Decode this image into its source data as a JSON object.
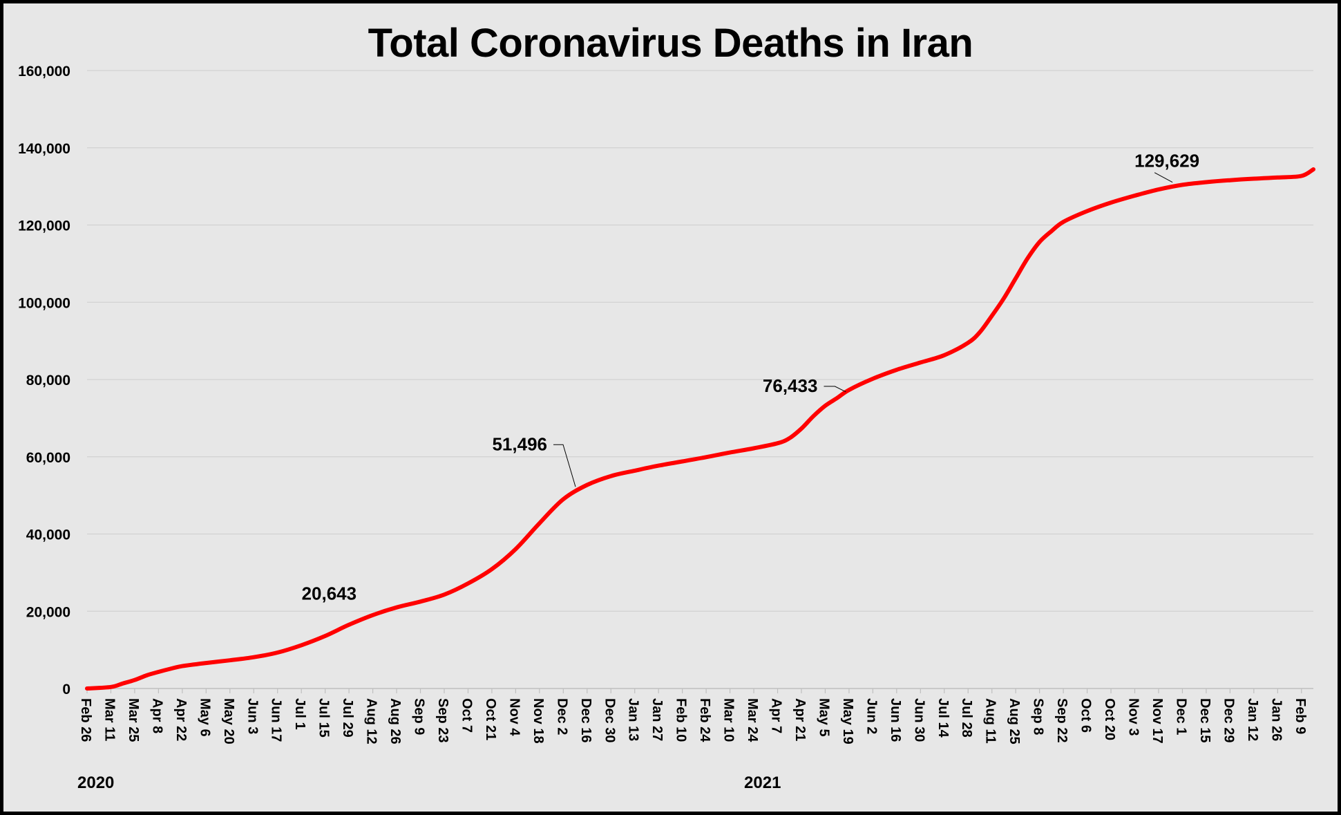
{
  "chart_data": {
    "type": "line",
    "title": "Total Coronavirus Deaths in Iran",
    "xlabel": "",
    "ylabel": "",
    "ylim": [
      0,
      160000
    ],
    "yticks": [
      0,
      20000,
      40000,
      60000,
      80000,
      100000,
      120000,
      140000,
      160000
    ],
    "ytick_labels": [
      "0",
      "20,000",
      "40,000",
      "60,000",
      "80,000",
      "100,000",
      "120,000",
      "140,000",
      "160,000"
    ],
    "xlim": [
      "2020-02-26",
      "2022-02-16"
    ],
    "xticks": [
      {
        "date": "2020-02-26",
        "label": "Feb 26"
      },
      {
        "date": "2020-03-11",
        "label": "Mar 11"
      },
      {
        "date": "2020-03-25",
        "label": "Mar 25"
      },
      {
        "date": "2020-04-08",
        "label": "Apr 8"
      },
      {
        "date": "2020-04-22",
        "label": "Apr 22"
      },
      {
        "date": "2020-05-06",
        "label": "May 6"
      },
      {
        "date": "2020-05-20",
        "label": "May 20"
      },
      {
        "date": "2020-06-03",
        "label": "Jun 3"
      },
      {
        "date": "2020-06-17",
        "label": "Jun 17"
      },
      {
        "date": "2020-07-01",
        "label": "Jul 1"
      },
      {
        "date": "2020-07-15",
        "label": "Jul 15"
      },
      {
        "date": "2020-07-29",
        "label": "Jul 29"
      },
      {
        "date": "2020-08-12",
        "label": "Aug 12"
      },
      {
        "date": "2020-08-26",
        "label": "Aug 26"
      },
      {
        "date": "2020-09-09",
        "label": "Sep 9"
      },
      {
        "date": "2020-09-23",
        "label": "Sep 23"
      },
      {
        "date": "2020-10-07",
        "label": "Oct 7"
      },
      {
        "date": "2020-10-21",
        "label": "Oct 21"
      },
      {
        "date": "2020-11-04",
        "label": "Nov 4"
      },
      {
        "date": "2020-11-18",
        "label": "Nov 18"
      },
      {
        "date": "2020-12-02",
        "label": "Dec 2"
      },
      {
        "date": "2020-12-16",
        "label": "Dec 16"
      },
      {
        "date": "2020-12-30",
        "label": "Dec 30"
      },
      {
        "date": "2021-01-13",
        "label": "Jan 13"
      },
      {
        "date": "2021-01-27",
        "label": "Jan 27"
      },
      {
        "date": "2021-02-10",
        "label": "Feb 10"
      },
      {
        "date": "2021-02-24",
        "label": "Feb 24"
      },
      {
        "date": "2021-03-10",
        "label": "Mar 10"
      },
      {
        "date": "2021-03-24",
        "label": "Mar 24"
      },
      {
        "date": "2021-04-07",
        "label": "Apr 7"
      },
      {
        "date": "2021-04-21",
        "label": "Apr 21"
      },
      {
        "date": "2021-05-05",
        "label": "May 5"
      },
      {
        "date": "2021-05-19",
        "label": "May 19"
      },
      {
        "date": "2021-06-02",
        "label": "Jun 2"
      },
      {
        "date": "2021-06-16",
        "label": "Jun 16"
      },
      {
        "date": "2021-06-30",
        "label": "Jun 30"
      },
      {
        "date": "2021-07-14",
        "label": "Jul 14"
      },
      {
        "date": "2021-07-28",
        "label": "Jul 28"
      },
      {
        "date": "2021-08-11",
        "label": "Aug 11"
      },
      {
        "date": "2021-08-25",
        "label": "Aug 25"
      },
      {
        "date": "2021-09-08",
        "label": "Sep 8"
      },
      {
        "date": "2021-09-22",
        "label": "Sep 22"
      },
      {
        "date": "2021-10-06",
        "label": "Oct 6"
      },
      {
        "date": "2021-10-20",
        "label": "Oct 20"
      },
      {
        "date": "2021-11-03",
        "label": "Nov 3"
      },
      {
        "date": "2021-11-17",
        "label": "Nov 17"
      },
      {
        "date": "2021-12-01",
        "label": "Dec 1"
      },
      {
        "date": "2021-12-15",
        "label": "Dec 15"
      },
      {
        "date": "2021-12-29",
        "label": "Dec 29"
      },
      {
        "date": "2022-01-12",
        "label": "Jan 12"
      },
      {
        "date": "2022-01-26",
        "label": "Jan 26"
      },
      {
        "date": "2022-02-09",
        "label": "Feb 9"
      }
    ],
    "year_labels": [
      {
        "date": "2020-02-26",
        "label": "2020"
      },
      {
        "date": "2021-03-24",
        "label": "2021"
      }
    ],
    "grid": true,
    "legend": "none",
    "series": [
      {
        "color": "#ff0000",
        "x": [
          "2020-02-26",
          "2020-03-11",
          "2020-03-18",
          "2020-03-25",
          "2020-04-01",
          "2020-04-08",
          "2020-04-15",
          "2020-04-22",
          "2020-05-06",
          "2020-05-20",
          "2020-06-03",
          "2020-06-17",
          "2020-07-01",
          "2020-07-15",
          "2020-07-29",
          "2020-08-12",
          "2020-08-26",
          "2020-09-09",
          "2020-09-23",
          "2020-10-07",
          "2020-10-21",
          "2020-11-04",
          "2020-11-18",
          "2020-12-02",
          "2020-12-16",
          "2020-12-30",
          "2021-01-13",
          "2021-01-27",
          "2021-02-10",
          "2021-02-24",
          "2021-03-10",
          "2021-03-24",
          "2021-04-07",
          "2021-04-14",
          "2021-04-21",
          "2021-04-28",
          "2021-05-05",
          "2021-05-12",
          "2021-05-19",
          "2021-06-02",
          "2021-06-16",
          "2021-06-30",
          "2021-07-14",
          "2021-07-28",
          "2021-08-04",
          "2021-08-11",
          "2021-08-18",
          "2021-08-25",
          "2021-09-01",
          "2021-09-08",
          "2021-09-15",
          "2021-09-22",
          "2021-10-06",
          "2021-10-20",
          "2021-11-03",
          "2021-11-17",
          "2021-12-01",
          "2021-12-15",
          "2021-12-29",
          "2022-01-12",
          "2022-01-26",
          "2022-02-09",
          "2022-02-16"
        ],
        "y": [
          0,
          400,
          1300,
          2200,
          3400,
          4300,
          5100,
          5800,
          6600,
          7300,
          8100,
          9300,
          11200,
          13600,
          16500,
          19000,
          21000,
          22500,
          24300,
          27200,
          30900,
          36100,
          42800,
          49000,
          52700,
          55000,
          56400,
          57700,
          58800,
          59900,
          61100,
          62200,
          63500,
          64800,
          67300,
          70500,
          73200,
          75200,
          77300,
          80200,
          82500,
          84400,
          86300,
          89500,
          92300,
          96500,
          101000,
          106200,
          111400,
          115600,
          118400,
          120800,
          123600,
          125800,
          127600,
          129200,
          130400,
          131100,
          131600,
          132000,
          132300,
          132700,
          134400
        ]
      }
    ],
    "annotations": [
      {
        "label": "20,643",
        "x": "2020-08-05",
        "y": 20643
      },
      {
        "label": "51,496",
        "x": "2020-12-10",
        "y": 51496
      },
      {
        "label": "76,433",
        "x": "2021-05-18",
        "y": 76433
      },
      {
        "label": "129,629",
        "x": "2021-11-26",
        "y": 129629
      }
    ]
  }
}
